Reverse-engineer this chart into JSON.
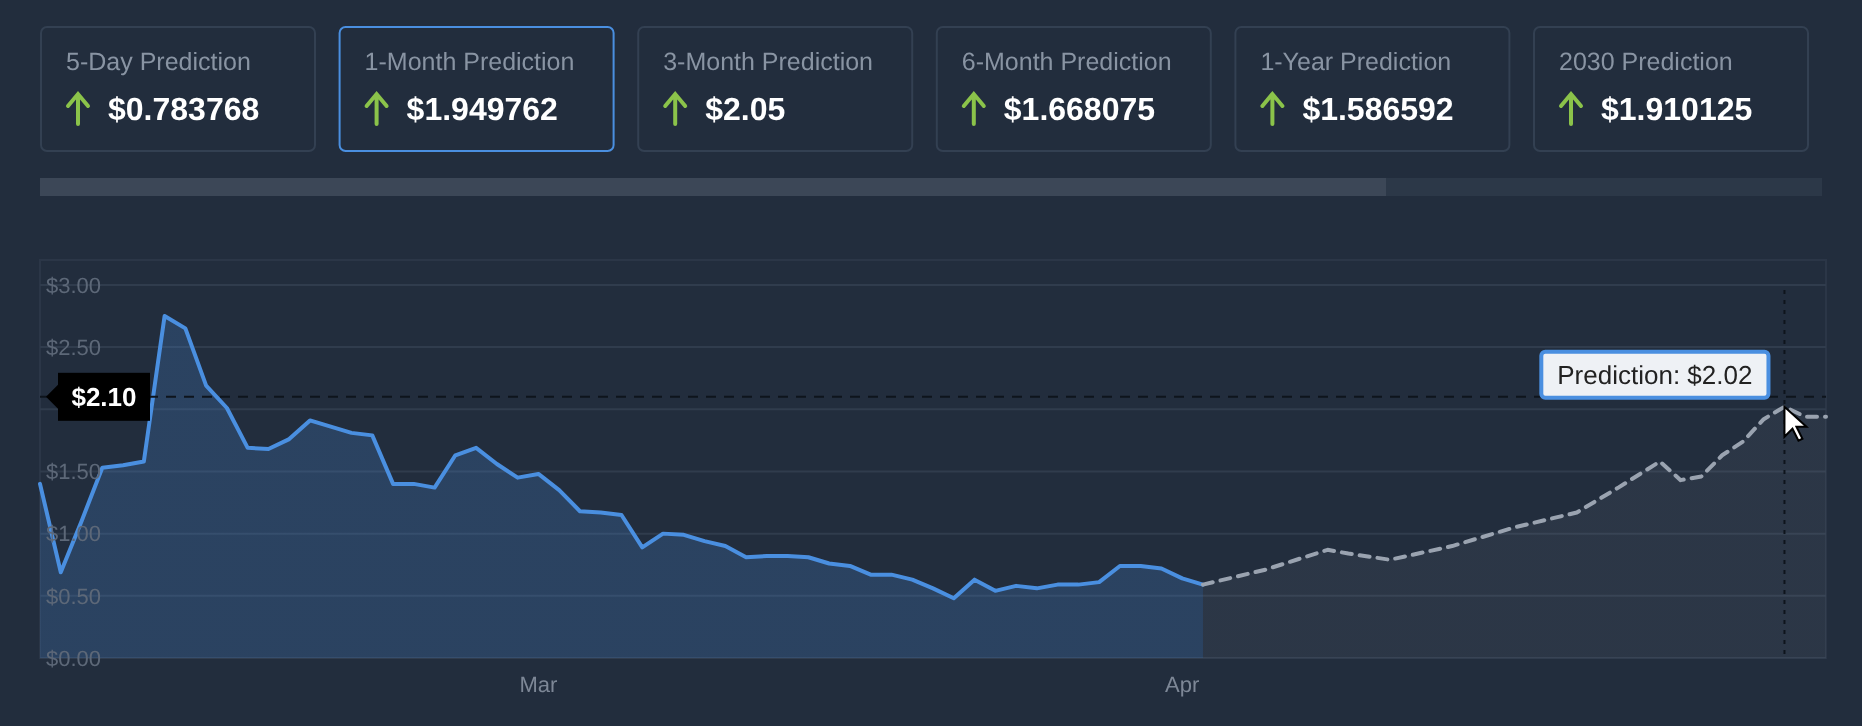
{
  "chart_data": [
    {
      "type": "other",
      "annotations": [
        "5-Day Prediction",
        "$0.783768",
        "1-Month Prediction",
        "$1.949762",
        "3-Month Prediction",
        "$2.05",
        "6-Month Prediction",
        "$1.668075",
        "1-Year Prediction",
        "$1.586592",
        "2030 Prediction",
        "$1.910125"
      ]
    },
    {
      "type": "area",
      "x": [
        "--02-05",
        "--02-06",
        "--02-07",
        "--02-08",
        "--02-09",
        "--02-10",
        "--02-11",
        "--02-12",
        "--02-13",
        "--02-14",
        "--02-15",
        "--02-16",
        "--02-17",
        "--02-18",
        "--02-19",
        "--02-20",
        "--02-21",
        "--02-22",
        "--02-23",
        "--02-24",
        "--02-25",
        "--02-26",
        "--02-27",
        "--02-28",
        "--03-01",
        "--03-02",
        "--03-03",
        "--03-04",
        "--03-05",
        "--03-06",
        "--03-07",
        "--03-08",
        "--03-09",
        "--03-10",
        "--03-11",
        "--03-12",
        "--03-13",
        "--03-14",
        "--03-15",
        "--03-16",
        "--03-17",
        "--03-18",
        "--03-19",
        "--03-20",
        "--03-21",
        "--03-22",
        "--03-23",
        "--03-24",
        "--03-25",
        "--03-26",
        "--03-27",
        "--03-28",
        "--03-29",
        "--03-30",
        "--03-31",
        "--04-01",
        "--04-02"
      ],
      "series": [
        {
          "type": "area",
          "color": "#4a8fe0",
          "line_style": "solid",
          "values": [
            1.4,
            0.69,
            1.1,
            1.53,
            1.55,
            1.58,
            2.75,
            2.65,
            2.19,
            2.01,
            1.69,
            1.68,
            1.76,
            1.91,
            1.86,
            1.81,
            1.79,
            1.4,
            1.4,
            1.37,
            1.63,
            1.69,
            1.56,
            1.45,
            1.48,
            1.35,
            1.18,
            1.17,
            1.15,
            0.89,
            1.0,
            0.99,
            0.94,
            0.9,
            0.81,
            0.82,
            0.82,
            0.81,
            0.76,
            0.74,
            0.67,
            0.67,
            0.63,
            0.56,
            0.48,
            0.63,
            0.54,
            0.58,
            0.56,
            0.59,
            0.59,
            0.61,
            0.74,
            0.74,
            0.72,
            0.64,
            0.59
          ]
        },
        {
          "type": "area",
          "color": "#9aa3b0",
          "line_style": "dashed",
          "x": [
            "--04-02",
            "--04-05",
            "--04-08",
            "--04-09",
            "--04-11",
            "--04-14",
            "--04-17",
            "--04-20",
            "--04-22",
            "--04-24",
            "--04-25",
            "--04-26",
            "--04-27",
            "--04-28",
            "--04-29",
            "--04-30",
            "--05-01",
            "--05-02"
          ],
          "values": [
            0.59,
            0.71,
            0.87,
            0.84,
            0.79,
            0.9,
            1.05,
            1.17,
            1.37,
            1.58,
            1.43,
            1.46,
            1.63,
            1.74,
            1.92,
            2.02,
            1.94,
            1.94
          ]
        }
      ],
      "xlim": [
        "--02-05",
        "--05-02"
      ],
      "xticks": [
        {
          "value": "--03-01",
          "label": "Mar"
        },
        {
          "value": "--04-01",
          "label": "Apr"
        }
      ],
      "ylim": [
        0,
        3.2
      ],
      "yticks": [
        {
          "value": 0,
          "label": "$0.00"
        },
        {
          "value": 0.5,
          "label": "$0.50"
        },
        {
          "value": 1,
          "label": "$1.00"
        },
        {
          "value": 1.5,
          "label": "$1.50"
        },
        {
          "value": 2,
          "label": null
        },
        {
          "value": 2.5,
          "label": "$2.50"
        },
        {
          "value": 3,
          "label": "$3.00"
        }
      ],
      "grid": "y",
      "ref_lines": [
        {
          "axis": "y",
          "value": 2.1,
          "label": "$2.10",
          "line_style": "dashed"
        },
        {
          "axis": "x",
          "value": "--04-30",
          "line_style": "dotted"
        }
      ],
      "annotations": [
        {
          "text": "Prediction: $2.02",
          "x": "--04-30",
          "y": 2.02
        }
      ]
    }
  ]
}
